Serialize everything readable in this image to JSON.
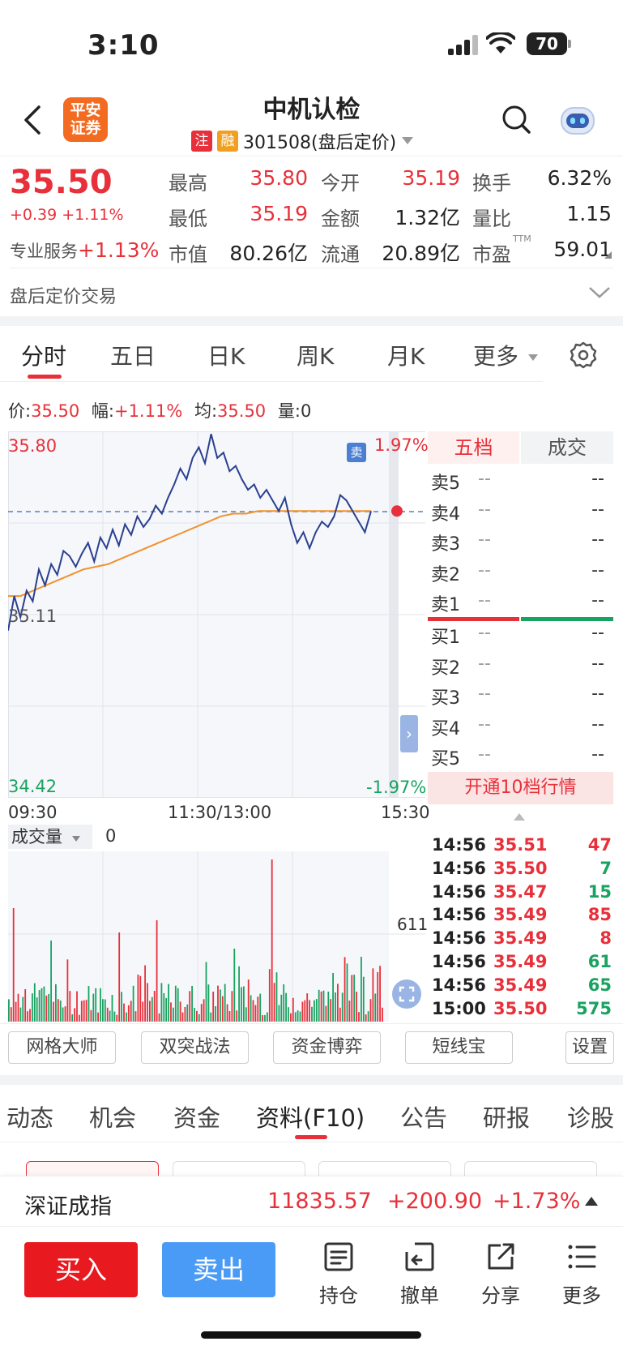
{
  "status": {
    "time": "3:10",
    "battery": "70"
  },
  "header": {
    "logo_text_top": "平安",
    "logo_text_bottom": "证券",
    "stock_name": "中机认检",
    "tag_reg": "注",
    "tag_margin": "融",
    "code_label": "301508(盘后定价)"
  },
  "quote": {
    "price": "35.50",
    "change": "+0.39",
    "change_pct": "+1.11%",
    "pro_label": "专业服务",
    "pro_pct": "+1.13%",
    "fields": [
      {
        "label": "最高",
        "value": "35.80",
        "color": "red"
      },
      {
        "label": "今开",
        "value": "35.19",
        "color": "red"
      },
      {
        "label": "换手",
        "value": "6.32%",
        "color": "black"
      },
      {
        "label": "最低",
        "value": "35.19",
        "color": "red"
      },
      {
        "label": "金额",
        "value": "1.32亿",
        "color": "black"
      },
      {
        "label": "量比",
        "value": "1.15",
        "color": "black"
      },
      {
        "label": "市值",
        "value": "80.26亿",
        "color": "black"
      },
      {
        "label": "流通",
        "value": "20.89亿",
        "color": "black"
      },
      {
        "label": "市盈",
        "value": "59.01",
        "color": "black",
        "sup": "TTM"
      }
    ]
  },
  "after_hours": {
    "label": "盘后定价交易"
  },
  "tabs": [
    "分时",
    "五日",
    "日K",
    "周K",
    "月K",
    "更多"
  ],
  "info_line": {
    "price_label": "价:",
    "price": "35.50",
    "amp_label": "幅:",
    "amp": "+1.11%",
    "avg_label": "均:",
    "avg": "35.50",
    "vol_label": "量:",
    "vol": "0"
  },
  "chart": {
    "y_top": "35.80",
    "y_mid": "35.11",
    "y_bottom": "34.42",
    "pct_top": "1.97%",
    "pct_bottom": "-1.97%",
    "sell_marker": "卖",
    "x_start": "09:30",
    "x_mid": "11:30/13:00",
    "x_end": "15:30",
    "vol_label": "成交量",
    "vol_value": "0",
    "vol_max": "611"
  },
  "chart_data": {
    "type": "line",
    "ylim": [
      34.42,
      35.8
    ],
    "series": [
      {
        "values": [
          35.05,
          35.18,
          35.1,
          35.2,
          35.16,
          35.28,
          35.22,
          35.3,
          35.26,
          35.35,
          35.33,
          35.29,
          35.34,
          35.38,
          35.31,
          35.4,
          35.36,
          35.43,
          35.37,
          35.45,
          35.41,
          35.48,
          35.44,
          35.47,
          35.52,
          35.49,
          35.55,
          35.6,
          35.66,
          35.62,
          35.7,
          35.74,
          35.68,
          35.79,
          35.7,
          35.72,
          35.65,
          35.67,
          35.62,
          35.58,
          35.6,
          35.55,
          35.58,
          35.54,
          35.5,
          35.55,
          35.45,
          35.38,
          35.42,
          35.36,
          35.42,
          35.46,
          35.44,
          35.48,
          35.56,
          35.54,
          35.5,
          35.46,
          35.42,
          35.5
        ]
      },
      {
        "values": [
          35.18,
          35.18,
          35.2,
          35.22,
          35.24,
          35.26,
          35.28,
          35.29,
          35.3,
          35.32,
          35.34,
          35.36,
          35.38,
          35.4,
          35.42,
          35.44,
          35.46,
          35.48,
          35.49,
          35.49,
          35.5,
          35.5,
          35.5,
          35.5,
          35.5,
          35.5,
          35.5,
          35.5,
          35.5,
          35.5
        ]
      }
    ]
  },
  "orderbook": {
    "tab_levels": "五档",
    "tab_trades": "成交",
    "sell": [
      {
        "label": "卖5",
        "price": "--",
        "vol": "--"
      },
      {
        "label": "卖4",
        "price": "--",
        "vol": "--"
      },
      {
        "label": "卖3",
        "price": "--",
        "vol": "--"
      },
      {
        "label": "卖2",
        "price": "--",
        "vol": "--"
      },
      {
        "label": "卖1",
        "price": "--",
        "vol": "--"
      }
    ],
    "buy": [
      {
        "label": "买1",
        "price": "--",
        "vol": "--"
      },
      {
        "label": "买2",
        "price": "--",
        "vol": "--"
      },
      {
        "label": "买3",
        "price": "--",
        "vol": "--"
      },
      {
        "label": "买4",
        "price": "--",
        "vol": "--"
      },
      {
        "label": "买5",
        "price": "--",
        "vol": "--"
      }
    ],
    "open10": "开通10档行情"
  },
  "ticks": [
    {
      "time": "14:56",
      "price": "35.51",
      "vol": "47",
      "color": "red"
    },
    {
      "time": "14:56",
      "price": "35.50",
      "vol": "7",
      "color": "green"
    },
    {
      "time": "14:56",
      "price": "35.47",
      "vol": "15",
      "color": "green"
    },
    {
      "time": "14:56",
      "price": "35.49",
      "vol": "85",
      "color": "red"
    },
    {
      "time": "14:56",
      "price": "35.49",
      "vol": "8",
      "color": "red"
    },
    {
      "time": "14:56",
      "price": "35.49",
      "vol": "61",
      "color": "green"
    },
    {
      "time": "14:56",
      "price": "35.49",
      "vol": "65",
      "color": "green"
    },
    {
      "time": "15:00",
      "price": "35.50",
      "vol": "575",
      "color": "green"
    }
  ],
  "tools": [
    "网格大师",
    "双突战法",
    "资金博弈",
    "短线宝",
    "设置"
  ],
  "news_tabs": [
    "动态",
    "机会",
    "资金",
    "资料(F10)",
    "公告",
    "研报",
    "诊股"
  ],
  "index_bar": {
    "name": "深证成指",
    "value": "11835.57",
    "change": "+200.90",
    "pct": "+1.73%"
  },
  "bottom": {
    "buy": "买入",
    "sell": "卖出",
    "items": [
      "持仓",
      "撤单",
      "分享",
      "更多"
    ]
  }
}
